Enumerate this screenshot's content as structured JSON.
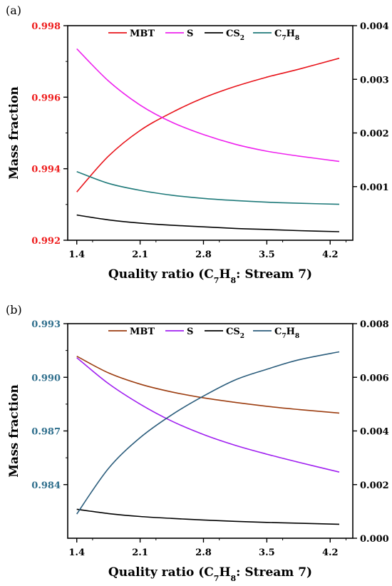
{
  "chart_data": [
    {
      "type": "line",
      "panel_label": "(a)",
      "xlabel_parts": [
        "Quality ratio (C",
        "7",
        "H",
        "8",
        ": Stream 7)"
      ],
      "ylabel": "Mass fraction",
      "xlim": [
        1.3,
        4.45
      ],
      "xticks": [
        1.4,
        2.1,
        2.8,
        3.5,
        4.2
      ],
      "xtick_labels": [
        "1.4",
        "2.1",
        "2.8",
        "3.5",
        "4.2"
      ],
      "left_ylim": [
        0.992,
        0.998
      ],
      "left_yticks": [
        "0.992",
        "0.994",
        "0.996",
        "0.998"
      ],
      "left_tick_color": "#ee1c1c",
      "right_ylim": [
        0.0,
        0.004
      ],
      "right_yticks": [
        "0.001",
        "0.002",
        "0.003",
        "0.004"
      ],
      "legend_position": "top",
      "x": [
        1.4,
        1.75,
        2.1,
        2.45,
        2.8,
        3.15,
        3.5,
        3.85,
        4.3
      ],
      "series": [
        {
          "name_parts": [
            "MBT"
          ],
          "color": "#e8141b",
          "axis": "left",
          "values": [
            0.99335,
            0.99435,
            0.99507,
            0.99557,
            0.99598,
            0.9963,
            0.99656,
            0.99678,
            0.99709
          ]
        },
        {
          "name_parts": [
            "S"
          ],
          "color": "#ee22ee",
          "axis": "right",
          "values": [
            0.00357,
            0.00297,
            0.00252,
            0.0022,
            0.00197,
            0.00179,
            0.00166,
            0.00157,
            0.00147
          ]
        },
        {
          "name_parts": [
            "CS",
            "2"
          ],
          "color": "#000000",
          "axis": "right",
          "values": [
            0.00047,
            0.00038,
            0.00032,
            0.00028,
            0.00025,
            0.00022,
            0.0002,
            0.00018,
            0.00016
          ]
        },
        {
          "name_parts": [
            "C",
            "7",
            "H",
            "8"
          ],
          "color": "#1f7a7a",
          "axis": "right",
          "values": [
            0.00128,
            0.00106,
            0.00093,
            0.00084,
            0.00078,
            0.00074,
            0.00071,
            0.00069,
            0.00067
          ]
        }
      ]
    },
    {
      "type": "line",
      "panel_label": "(b)",
      "xlabel_parts": [
        "Quality ratio (C",
        "7",
        "H",
        "8",
        ": Stream 7)"
      ],
      "ylabel": "Mass fraction",
      "xlim": [
        1.3,
        4.45
      ],
      "xticks": [
        1.4,
        2.1,
        2.8,
        3.5,
        4.2
      ],
      "xtick_labels": [
        "1.4",
        "2.1",
        "2.8",
        "3.5",
        "4.2"
      ],
      "left_ylim": [
        0.981,
        0.993
      ],
      "left_yticks": [
        "0.984",
        "0.987",
        "0.990",
        "0.993"
      ],
      "left_tick_color": "#2e6e8c",
      "right_ylim": [
        0.0,
        0.008
      ],
      "right_yticks": [
        "0.000",
        "0.002",
        "0.004",
        "0.006",
        "0.008"
      ],
      "legend_position": "top",
      "x": [
        1.4,
        1.75,
        2.1,
        2.45,
        2.8,
        3.15,
        3.5,
        3.85,
        4.3
      ],
      "series": [
        {
          "name_parts": [
            "MBT"
          ],
          "color": "#9c3d10",
          "axis": "left",
          "values": [
            0.99118,
            0.99025,
            0.98962,
            0.98918,
            0.98885,
            0.9886,
            0.98838,
            0.9882,
            0.988
          ]
        },
        {
          "name_parts": [
            "S"
          ],
          "color": "#a020f0",
          "axis": "left",
          "values": [
            0.9911,
            0.98965,
            0.9885,
            0.98755,
            0.9868,
            0.9862,
            0.9857,
            0.98525,
            0.9847
          ]
        },
        {
          "name_parts": [
            "CS",
            "2"
          ],
          "color": "#000000",
          "axis": "right",
          "values": [
            0.00108,
            0.00092,
            0.00081,
            0.00074,
            0.00068,
            0.00063,
            0.00059,
            0.00056,
            0.00052
          ]
        },
        {
          "name_parts": [
            "C",
            "7",
            "H",
            "8"
          ],
          "color": "#2b5d7c",
          "axis": "right",
          "values": [
            0.0009,
            0.0026,
            0.00375,
            0.0046,
            0.0053,
            0.0059,
            0.0063,
            0.00665,
            0.00695
          ]
        }
      ]
    }
  ]
}
